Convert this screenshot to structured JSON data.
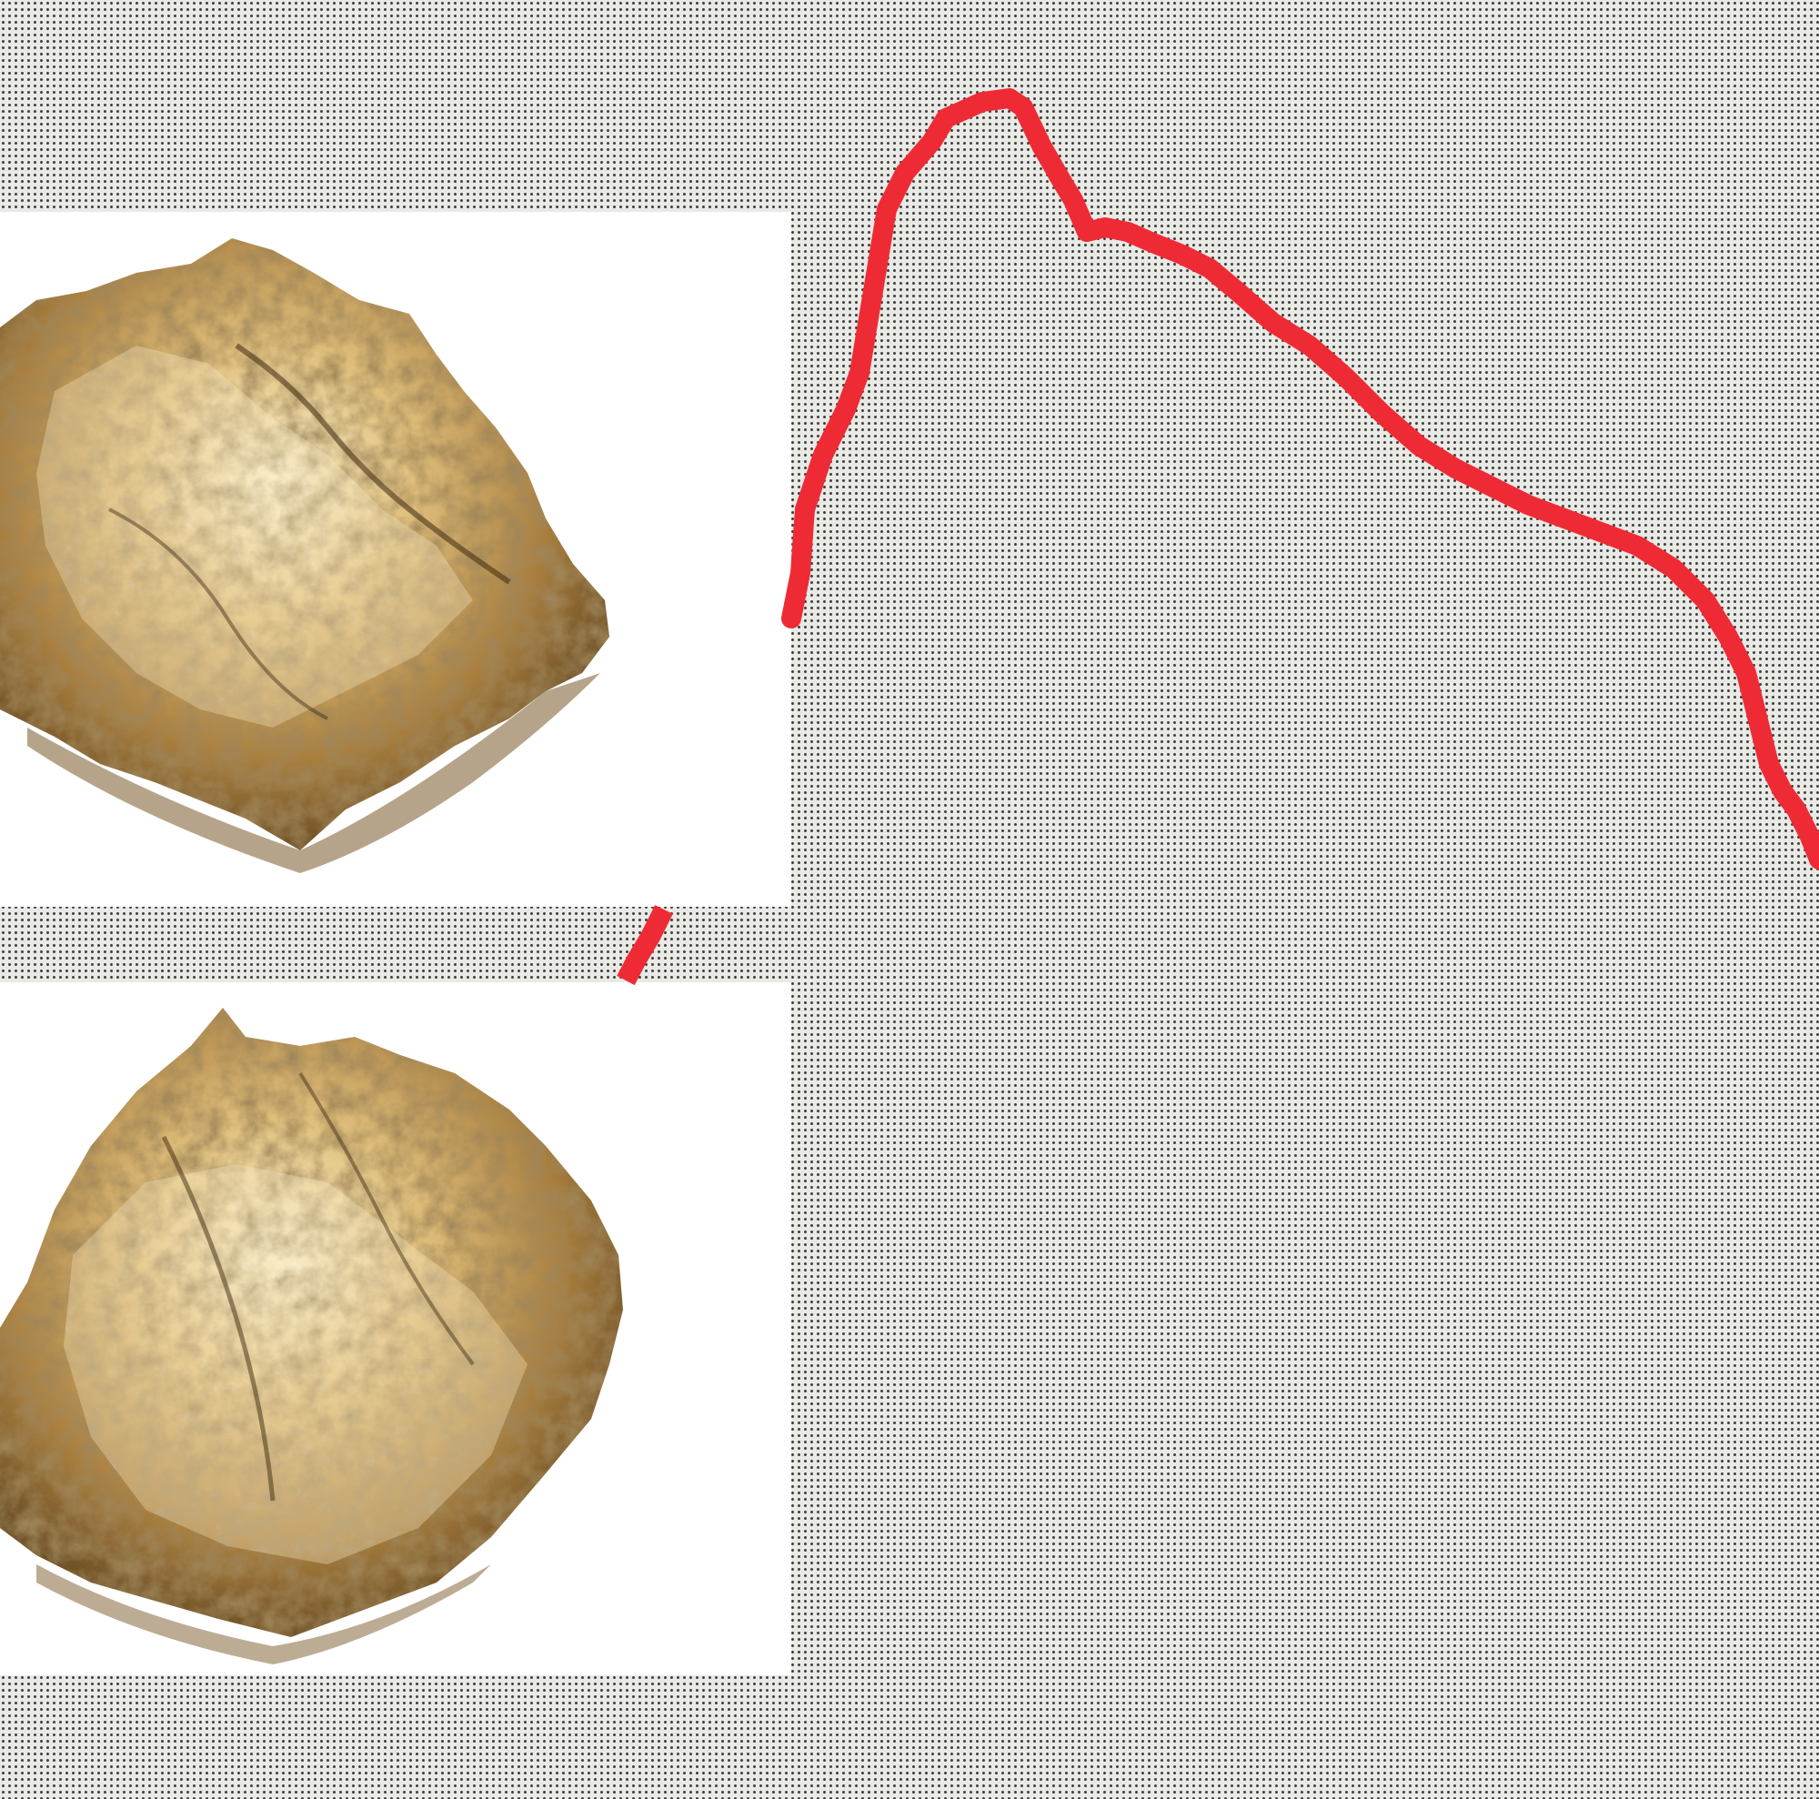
{
  "palette": {
    "background": "#e9e9e5",
    "dot": "#3a3a3a",
    "photo_background": "#ffffff",
    "foil_light": "#f3e2b4",
    "foil_mid": "#c9a35a",
    "foil_dark": "#5a3f1c",
    "line": "#ee2b35"
  },
  "panels": [
    {
      "subject": "crumpled-gold-foil"
    },
    {
      "subject": "crumpled-gold-foil"
    }
  ]
}
